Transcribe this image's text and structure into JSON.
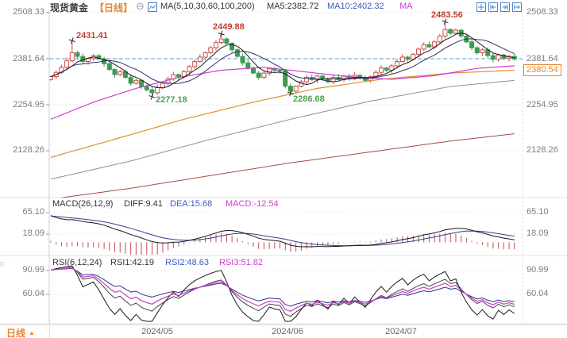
{
  "header": {
    "symbol": "现货黄金",
    "period": "【日线】",
    "ma_group": "MA(5,10,30,60,100,200)",
    "ma5": "MA5:2382.72",
    "ma10": "MA10:2402.32",
    "ma_truncated": "MA"
  },
  "axes": {
    "main": [
      "2508.33",
      "2381.64",
      "2254.95",
      "2128.26"
    ],
    "macd": [
      "65.10",
      "18.09"
    ],
    "rsi": [
      "90.99",
      "60.04"
    ]
  },
  "price_box": {
    "value": "2380.54"
  },
  "macd_header": {
    "title": "MACD(26,12,9)",
    "diff": "DIFF:9.41",
    "dea": "DEA:15.68",
    "macd": "MACD:-12.54"
  },
  "rsi_header": {
    "title": "RSI(6,12,24)",
    "rsi1": "RSI1:42.19",
    "rsi2": "RSI2:48.63",
    "rsi3": "RSI3:51.82"
  },
  "bottom": {
    "tab": "日线",
    "dates": [
      "2024/05",
      "2024/06",
      "2024/07"
    ]
  },
  "icons": {
    "collapse_glyph": "⊖",
    "sun_glyph": "☼",
    "tab_arrow": "▲",
    "chart_icon": "line-chart-icon",
    "toolbar": [
      "crosshair-icon",
      "scroll-zoom-out-icon",
      "scroll-zoom-in-icon",
      "pan-right-icon"
    ]
  },
  "colors": {
    "accent_orange": "#e8842c",
    "candle_up": "#c9504c",
    "candle_down": "#3f9a52",
    "ref_line_blue": "#5b9bd5",
    "annotation_high": "#c23b2e",
    "annotation_low": "#4f9e53",
    "value_blue": "#3b5bc0",
    "value_magenta": "#cf3ecf"
  },
  "chart_data": {
    "type": "candlestick",
    "title": "现货黄金 日线",
    "y_ticks": [
      2508.33,
      2381.64,
      2254.95,
      2128.26
    ],
    "x_labels": [
      "2024/05",
      "2024/06",
      "2024/07"
    ],
    "ref_price": 2381.64,
    "last_price": 2380.54,
    "ma_values": {
      "MA5": 2382.72,
      "MA10": 2402.32
    },
    "closes": [
      2332,
      2344,
      2358,
      2376,
      2398,
      2388,
      2374,
      2382,
      2390,
      2381,
      2368,
      2352,
      2338,
      2346,
      2330,
      2314,
      2322,
      2305,
      2296,
      2288,
      2302,
      2314,
      2326,
      2338,
      2332,
      2346,
      2360,
      2374,
      2386,
      2398,
      2412,
      2426,
      2436,
      2424,
      2406,
      2388,
      2370,
      2356,
      2342,
      2330,
      2342,
      2354,
      2350,
      2348,
      2306,
      2292,
      2306,
      2318,
      2330,
      2324,
      2334,
      2326,
      2318,
      2330,
      2324,
      2334,
      2326,
      2336,
      2330,
      2322,
      2332,
      2344,
      2356,
      2350,
      2362,
      2374,
      2386,
      2380,
      2394,
      2408,
      2420,
      2414,
      2428,
      2444,
      2462,
      2452,
      2460,
      2444,
      2428,
      2412,
      2398,
      2406,
      2390,
      2380,
      2392,
      2382,
      2388,
      2380.5
    ],
    "marked_points": [
      {
        "index": 4,
        "type": "high",
        "value": 2431.41,
        "label": "2431.41"
      },
      {
        "index": 19,
        "type": "low",
        "value": 2277.18,
        "label": "2277.18"
      },
      {
        "index": 32,
        "type": "high",
        "value": 2449.88,
        "label": "2449.88"
      },
      {
        "index": 45,
        "type": "low",
        "value": 2286.68,
        "label": "2286.68"
      },
      {
        "index": 74,
        "type": "high",
        "value": 2483.56,
        "label": "2483.56"
      }
    ],
    "ma_anchors": {
      "ma30": [
        [
          0,
          2215
        ],
        [
          8,
          2262
        ],
        [
          16,
          2300
        ],
        [
          24,
          2330
        ],
        [
          32,
          2350
        ],
        [
          40,
          2358
        ],
        [
          48,
          2345
        ],
        [
          56,
          2332
        ],
        [
          64,
          2325
        ],
        [
          72,
          2335
        ],
        [
          80,
          2355
        ],
        [
          87,
          2362
        ]
      ],
      "ma60": [
        [
          0,
          2110
        ],
        [
          12,
          2160
        ],
        [
          25,
          2215
        ],
        [
          38,
          2262
        ],
        [
          50,
          2300
        ],
        [
          62,
          2325
        ],
        [
          75,
          2342
        ],
        [
          87,
          2350
        ]
      ],
      "ma100": [
        [
          0,
          2050
        ],
        [
          15,
          2100
        ],
        [
          30,
          2160
        ],
        [
          45,
          2215
        ],
        [
          60,
          2265
        ],
        [
          75,
          2305
        ],
        [
          87,
          2322
        ]
      ],
      "ma200": [
        [
          0,
          1995
        ],
        [
          15,
          2025
        ],
        [
          30,
          2060
        ],
        [
          45,
          2095
        ],
        [
          60,
          2125
        ],
        [
          75,
          2155
        ],
        [
          87,
          2175
        ]
      ]
    },
    "macd": {
      "params": [
        26,
        12,
        9
      ],
      "diff": 9.41,
      "dea": 15.68,
      "hist": -12.54,
      "ticks": [
        65.1,
        18.09
      ]
    },
    "rsi": {
      "params": [
        6,
        12,
        24
      ],
      "rsi1": 42.19,
      "rsi2": 48.63,
      "rsi3": 51.82,
      "ticks": [
        90.99,
        60.04
      ]
    }
  }
}
